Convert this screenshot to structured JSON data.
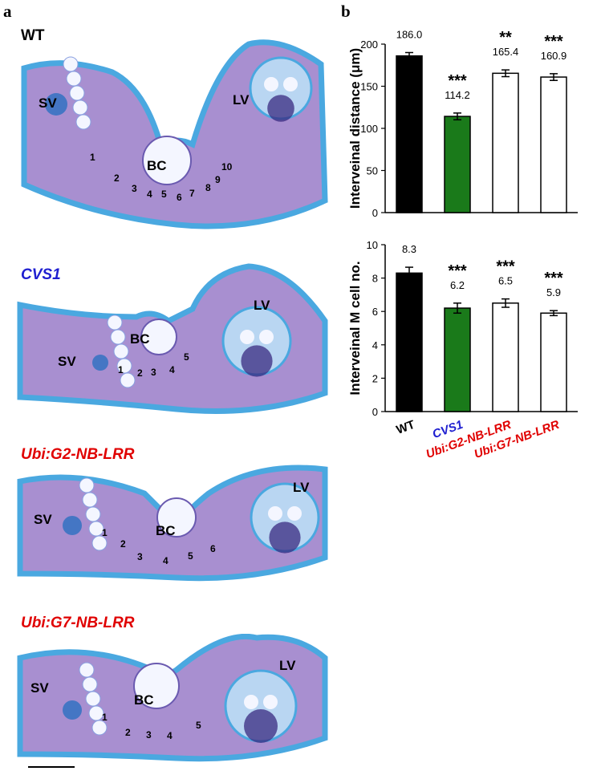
{
  "panels": {
    "a": {
      "letter": "a",
      "sections": [
        {
          "label": "WT",
          "label_color": "#000000",
          "italic": false,
          "labels": [
            "SV",
            "LV",
            "BC",
            "1",
            "2",
            "3",
            "4",
            "5",
            "6",
            "7",
            "8",
            "9",
            "10"
          ]
        },
        {
          "label": "CVS1",
          "label_color": "#1f1fd0",
          "italic": true,
          "labels": [
            "SV",
            "LV",
            "BC",
            "1",
            "2",
            "3",
            "4",
            "5"
          ]
        },
        {
          "label": "Ubi:G2-NB-LRR",
          "label_color": "#e00000",
          "italic": true,
          "labels": [
            "SV",
            "LV",
            "BC",
            "1",
            "2",
            "3",
            "4",
            "5",
            "6"
          ]
        },
        {
          "label": "Ubi:G7-NB-LRR",
          "label_color": "#e00000",
          "italic": true,
          "labels": [
            "SV",
            "LV",
            "BC",
            "1",
            "2",
            "3",
            "4",
            "5"
          ]
        }
      ],
      "colors": {
        "tissue": "#a88fd0",
        "epidermis": "#4aa8e0",
        "cells": "#f4f6ff",
        "vein": "#2b6fc0",
        "dark": "#3a2a80"
      }
    },
    "b": {
      "letter": "b"
    }
  },
  "chart_data": [
    {
      "type": "bar",
      "categories": [
        "WT",
        "CVS1",
        "Ubi:G2-NB-LRR",
        "Ubi:G7-NB-LRR"
      ],
      "category_colors": [
        "#000000",
        "#1f1fd0",
        "#e00000",
        "#e00000"
      ],
      "values": [
        186.0,
        114.2,
        165.4,
        160.9
      ],
      "errors": [
        4,
        4,
        4,
        4
      ],
      "value_labels": [
        "186.0",
        "114.2",
        "165.4",
        "160.9"
      ],
      "significance": [
        "",
        "***",
        "**",
        "***"
      ],
      "bar_colors": [
        "#000000",
        "#1a7a1a",
        "#ffffff",
        "#ffffff"
      ],
      "ylabel": "Interveinal distance (μm)",
      "ylim": [
        0,
        200
      ],
      "yticks": [
        "0",
        "50",
        "100",
        "150",
        "200"
      ],
      "xlabel": ""
    },
    {
      "type": "bar",
      "categories": [
        "WT",
        "CVS1",
        "Ubi:G2-NB-LRR",
        "Ubi:G7-NB-LRR"
      ],
      "category_colors": [
        "#000000",
        "#1f1fd0",
        "#e00000",
        "#e00000"
      ],
      "values": [
        8.3,
        6.2,
        6.5,
        5.9
      ],
      "errors": [
        0.35,
        0.3,
        0.25,
        0.15
      ],
      "value_labels": [
        "8.3",
        "6.2",
        "6.5",
        "5.9"
      ],
      "significance": [
        "",
        "***",
        "***",
        "***"
      ],
      "bar_colors": [
        "#000000",
        "#1a7a1a",
        "#ffffff",
        "#ffffff"
      ],
      "ylabel": "Interveinal M cell no.",
      "ylim": [
        0,
        10
      ],
      "yticks": [
        "0",
        "2",
        "4",
        "6",
        "8",
        "10"
      ],
      "xlabel": ""
    }
  ]
}
